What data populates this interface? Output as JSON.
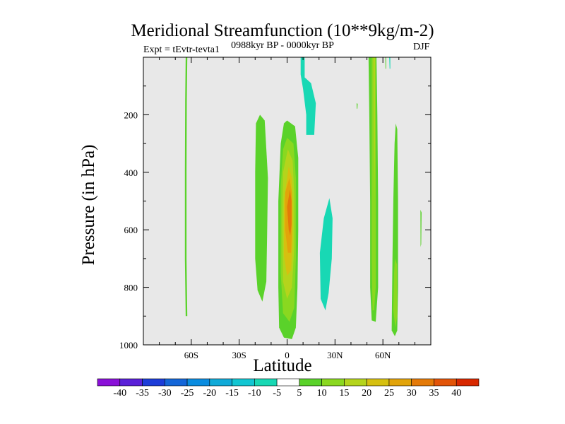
{
  "chart_data": {
    "type": "heatmap",
    "title": "Meridional Streamfunction (10**9kg/m-2)",
    "subtitle_left": "Expt = tEvtr-tevta1",
    "subtitle_center": "0988kyr BP - 0000kyr BP",
    "subtitle_right": "DJF",
    "xlabel": "Latitude",
    "ylabel": "Pressure (in hPa)",
    "xlim": [
      -90,
      90
    ],
    "ylim": [
      1000,
      0
    ],
    "x_ticks": [
      {
        "value": -60,
        "label": "60S"
      },
      {
        "value": -30,
        "label": "30S"
      },
      {
        "value": 0,
        "label": "0"
      },
      {
        "value": 30,
        "label": "30N"
      },
      {
        "value": 60,
        "label": "60N"
      }
    ],
    "y_ticks": [
      {
        "value": 200,
        "label": "200"
      },
      {
        "value": 400,
        "label": "400"
      },
      {
        "value": 600,
        "label": "600"
      },
      {
        "value": 800,
        "label": "800"
      },
      {
        "value": 1000,
        "label": "1000"
      }
    ],
    "colorbar": {
      "labels": [
        "-40",
        "-35",
        "-30",
        "-25",
        "-20",
        "-15",
        "-10",
        "-5",
        "5",
        "10",
        "15",
        "20",
        "25",
        "30",
        "35",
        "40"
      ],
      "colors": [
        "#8a10d8",
        "#5a20d8",
        "#1c3cd8",
        "#1466d8",
        "#0a8ce0",
        "#10aad8",
        "#12c6d2",
        "#18d8b4",
        "#ffffff",
        "#5ad22a",
        "#8ad820",
        "#b4d41c",
        "#d6c010",
        "#e2a40a",
        "#e47a08",
        "#e25408",
        "#d82800"
      ]
    },
    "contours": [
      {
        "level": 5,
        "color": "#5ad22a",
        "points": [
          [
            -63.5,
            0
          ],
          [
            -62.5,
            0
          ],
          [
            -62.8,
            150
          ],
          [
            -63,
            400
          ],
          [
            -63,
            700
          ],
          [
            -62.5,
            900
          ],
          [
            -63.5,
            900
          ],
          [
            -64,
            700
          ],
          [
            -64,
            400
          ],
          [
            -63.8,
            150
          ]
        ]
      },
      {
        "level": 5,
        "color": "#5ad22a",
        "points": [
          [
            -17,
            200
          ],
          [
            -14,
            220
          ],
          [
            -12,
            420
          ],
          [
            -12.5,
            620
          ],
          [
            -13,
            780
          ],
          [
            -15.5,
            850
          ],
          [
            -18.5,
            810
          ],
          [
            -20,
            700
          ],
          [
            -20,
            400
          ],
          [
            -19.5,
            230
          ]
        ]
      },
      {
        "level": 5,
        "color": "#5ad22a",
        "points": [
          [
            0,
            220
          ],
          [
            5,
            240
          ],
          [
            7,
            350
          ],
          [
            7,
            600
          ],
          [
            6.5,
            800
          ],
          [
            5.5,
            940
          ],
          [
            3,
            980
          ],
          [
            -2,
            975
          ],
          [
            -5,
            940
          ],
          [
            -5.5,
            800
          ],
          [
            -5.5,
            500
          ],
          [
            -4,
            300
          ],
          [
            -2,
            230
          ]
        ]
      },
      {
        "level": 10,
        "color": "#8ad820",
        "points": [
          [
            0,
            280
          ],
          [
            4,
            300
          ],
          [
            5.5,
            420
          ],
          [
            5.5,
            700
          ],
          [
            4.5,
            870
          ],
          [
            1.5,
            920
          ],
          [
            -2.5,
            890
          ],
          [
            -4,
            750
          ],
          [
            -4,
            450
          ],
          [
            -2.5,
            320
          ]
        ]
      },
      {
        "level": 15,
        "color": "#b4d41c",
        "points": [
          [
            0.5,
            320
          ],
          [
            3.5,
            360
          ],
          [
            4.5,
            480
          ],
          [
            4.5,
            660
          ],
          [
            3,
            800
          ],
          [
            0,
            840
          ],
          [
            -2.5,
            780
          ],
          [
            -3,
            580
          ],
          [
            -2.5,
            400
          ]
        ]
      },
      {
        "level": 20,
        "color": "#d6c010",
        "points": [
          [
            1,
            380
          ],
          [
            3,
            420
          ],
          [
            3.5,
            520
          ],
          [
            3.5,
            640
          ],
          [
            2.5,
            740
          ],
          [
            0,
            760
          ],
          [
            -2,
            690
          ],
          [
            -2,
            500
          ]
        ]
      },
      {
        "level": 25,
        "color": "#e2a40a",
        "points": [
          [
            1.5,
            420
          ],
          [
            3,
            470
          ],
          [
            3,
            600
          ],
          [
            2.5,
            680
          ],
          [
            0.5,
            680
          ],
          [
            -1.2,
            600
          ],
          [
            -1.2,
            470
          ]
        ]
      },
      {
        "level": 30,
        "color": "#e47a08",
        "points": [
          [
            1.8,
            460
          ],
          [
            2.8,
            500
          ],
          [
            2.8,
            580
          ],
          [
            2,
            620
          ],
          [
            1,
            600
          ],
          [
            0,
            520
          ]
        ]
      },
      {
        "level": -5,
        "color": "#18d8b4",
        "points": [
          [
            8.5,
            0
          ],
          [
            11,
            0
          ],
          [
            11,
            70
          ],
          [
            15,
            90
          ],
          [
            18,
            160
          ],
          [
            17,
            270
          ],
          [
            12,
            270
          ],
          [
            12,
            200
          ],
          [
            10,
            110
          ],
          [
            8.5,
            60
          ]
        ]
      },
      {
        "level": -5,
        "color": "#18d8b4",
        "points": [
          [
            26.5,
            490
          ],
          [
            28.5,
            560
          ],
          [
            28,
            700
          ],
          [
            26,
            820
          ],
          [
            24,
            880
          ],
          [
            21,
            840
          ],
          [
            20.5,
            680
          ],
          [
            23,
            560
          ]
        ]
      },
      {
        "level": 5,
        "color": "#5ad22a",
        "points": [
          [
            51,
            0
          ],
          [
            56,
            0
          ],
          [
            56.5,
            200
          ],
          [
            57,
            500
          ],
          [
            57,
            800
          ],
          [
            55.5,
            920
          ],
          [
            53,
            915
          ],
          [
            52,
            800
          ],
          [
            52,
            500
          ],
          [
            51.5,
            200
          ]
        ]
      },
      {
        "level": 10,
        "color": "#8ad820",
        "points": [
          [
            53,
            0
          ],
          [
            55.5,
            0
          ],
          [
            55.5,
            200
          ],
          [
            55.5,
            500
          ],
          [
            55.5,
            800
          ],
          [
            54.5,
            880
          ],
          [
            53.5,
            880
          ],
          [
            53,
            700
          ],
          [
            53,
            350
          ]
        ]
      },
      {
        "level": 15,
        "color": "#b4d41c",
        "points": [
          [
            54,
            0
          ],
          [
            55,
            0
          ],
          [
            55,
            300
          ],
          [
            54.6,
            500
          ],
          [
            54.3,
            300
          ]
        ]
      },
      {
        "level": 5,
        "color": "#5ad22a",
        "points": [
          [
            68,
            230
          ],
          [
            69,
            250
          ],
          [
            69.5,
            500
          ],
          [
            69.5,
            800
          ],
          [
            69,
            950
          ],
          [
            67.5,
            970
          ],
          [
            65.5,
            950
          ],
          [
            66,
            700
          ],
          [
            66.5,
            500
          ],
          [
            67.3,
            300
          ]
        ]
      },
      {
        "level": 10,
        "color": "#8ad820",
        "points": [
          [
            67.5,
            700
          ],
          [
            68.8,
            720
          ],
          [
            69,
            900
          ],
          [
            67.8,
            940
          ],
          [
            66.5,
            880
          ],
          [
            67,
            750
          ]
        ]
      },
      {
        "level": 5,
        "color": "#5ad22a",
        "points": [
          [
            83.5,
            530
          ],
          [
            84.2,
            540
          ],
          [
            84,
            650
          ],
          [
            83.6,
            660
          ]
        ]
      },
      {
        "level": 5,
        "color": "#5ad22a",
        "points": [
          [
            43.5,
            160
          ],
          [
            44.2,
            162
          ],
          [
            44,
            180
          ],
          [
            43.6,
            178
          ]
        ]
      },
      {
        "level": 5,
        "color": "#5ad22a",
        "points": [
          [
            61.5,
            0
          ],
          [
            62,
            0
          ],
          [
            62,
            40
          ],
          [
            61.6,
            40
          ]
        ]
      },
      {
        "level": -5,
        "color": "#18d8b4",
        "points": [
          [
            64,
            0
          ],
          [
            64.6,
            0
          ],
          [
            64.6,
            40
          ],
          [
            64.2,
            40
          ]
        ]
      }
    ]
  }
}
